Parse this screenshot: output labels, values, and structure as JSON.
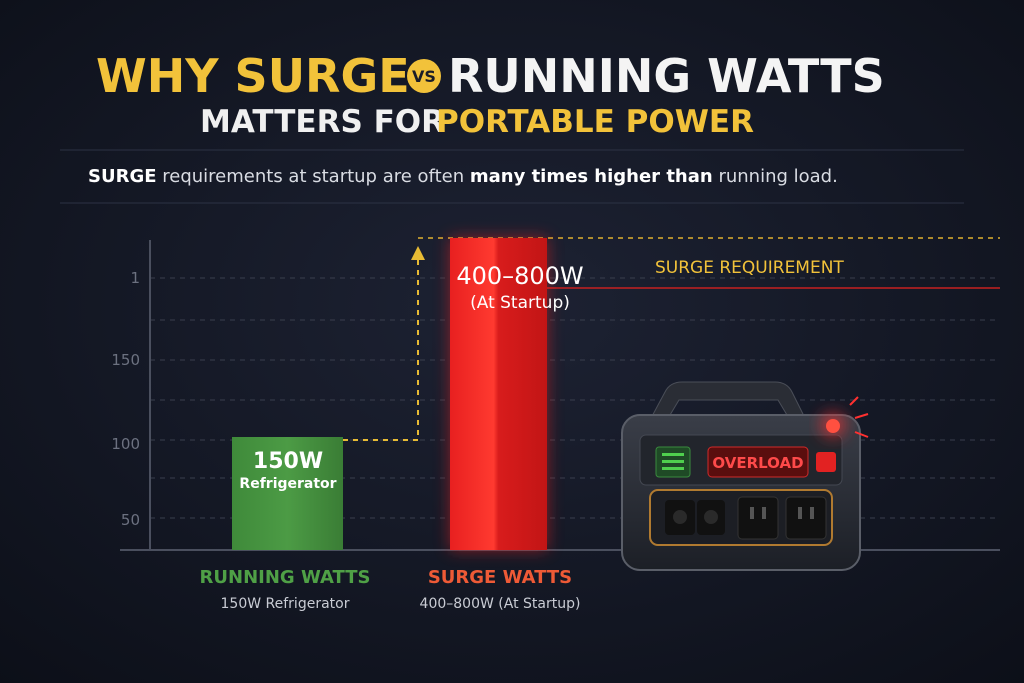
{
  "header": {
    "title": {
      "part1": "WHY SURGE",
      "badge": "VS",
      "part2": "RUNNING WATTS"
    },
    "subtitle": {
      "part1": "MATTERS FOR",
      "part2": "PORTABLE POWER"
    }
  },
  "intro": {
    "segments": [
      "SURGE",
      "requirements at startup are often",
      "many times higher than",
      "running load."
    ]
  },
  "chart": {
    "axis_labels": [
      "1",
      "150",
      "100",
      "50"
    ],
    "annotation": "SURGE REQUIREMENT",
    "bars": [
      {
        "label": "150W",
        "sublabel": "Refrigerator",
        "caption": "RUNNING WATTS",
        "caption_detail": "150W Refrigerator"
      },
      {
        "label": "400–800W",
        "sublabel": "(At Startup)",
        "caption": "SURGE WATTS",
        "caption_detail": "400–800W (At Startup)"
      }
    ]
  },
  "device": {
    "status": "OVERLOAD"
  }
}
